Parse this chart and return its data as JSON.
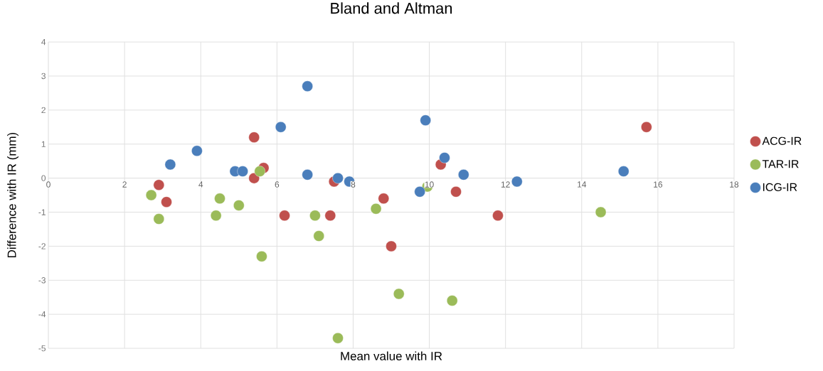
{
  "chart_data": {
    "type": "scatter",
    "title": "Bland and Altman",
    "xlabel": "Mean value with IR",
    "ylabel": "Difference with IR (mm)",
    "xlim": [
      0,
      18
    ],
    "xticks": [
      0,
      2,
      4,
      6,
      8,
      10,
      12,
      14,
      16,
      18
    ],
    "ylim": [
      -5,
      4
    ],
    "yticks": [
      -5,
      -4,
      -3,
      -2,
      -1,
      0,
      1,
      2,
      3,
      4
    ],
    "grid": true,
    "legend": "right",
    "marker": "circle",
    "series": [
      {
        "name": "ACG-IR",
        "color": "#c0504d",
        "x": [
          2.9,
          3.1,
          5.4,
          5.4,
          5.65,
          6.2,
          7.5,
          7.4,
          8.8,
          9.0,
          10.3,
          10.7,
          11.8,
          15.7
        ],
        "values": [
          -0.2,
          -0.7,
          1.2,
          0.0,
          0.3,
          -1.1,
          -0.1,
          -1.1,
          -0.6,
          -2.0,
          0.4,
          -0.4,
          -1.1,
          1.5
        ]
      },
      {
        "name": "TAR-IR",
        "color": "#9bbb59",
        "x": [
          2.7,
          2.9,
          4.5,
          4.4,
          5.0,
          5.55,
          5.6,
          7.0,
          7.1,
          7.6,
          8.6,
          9.2,
          9.95,
          10.6,
          14.5
        ],
        "values": [
          -0.5,
          -1.2,
          -0.6,
          -1.1,
          -0.8,
          0.2,
          -2.3,
          -1.1,
          -1.7,
          -4.7,
          -0.9,
          -3.4,
          -0.25,
          -3.6,
          -1.0
        ]
      },
      {
        "name": "ICG-IR",
        "color": "#4a7ebb",
        "x": [
          3.2,
          3.9,
          4.9,
          5.1,
          6.1,
          6.8,
          6.8,
          7.6,
          7.9,
          9.75,
          9.9,
          10.4,
          10.9,
          12.3,
          15.1
        ],
        "values": [
          0.4,
          0.8,
          0.2,
          0.2,
          1.5,
          2.7,
          0.1,
          0.0,
          -0.1,
          -0.4,
          1.7,
          0.6,
          0.1,
          -0.1,
          0.2
        ]
      }
    ]
  }
}
